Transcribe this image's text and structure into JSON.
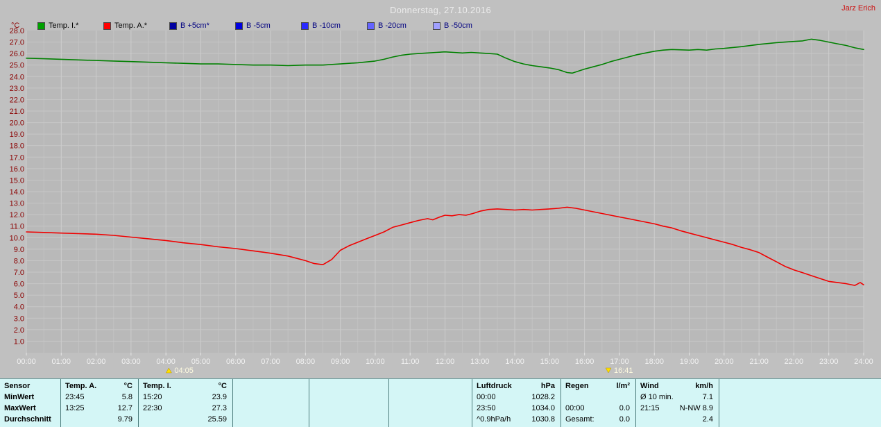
{
  "header": {
    "title": "Donnerstag, 27.10.2016",
    "user": "Jarz Erich"
  },
  "legend": {
    "axis_unit": "°C",
    "items": [
      {
        "label": "Temp. I.*",
        "color": "#00a000",
        "text_color": "#000000"
      },
      {
        "label": "Temp. A.*",
        "color": "#ff0000",
        "text_color": "#000000"
      },
      {
        "label": "B +5cm*",
        "color": "#0000a0",
        "text_color": "#000080"
      },
      {
        "label": "B -5cm",
        "color": "#0000e0",
        "text_color": "#000080"
      },
      {
        "label": "B -10cm",
        "color": "#2828ff",
        "text_color": "#000080"
      },
      {
        "label": "B -20cm",
        "color": "#6464ff",
        "text_color": "#000080"
      },
      {
        "label": "B -50cm",
        "color": "#a0a0ff",
        "text_color": "#000080"
      }
    ]
  },
  "chart_data": {
    "type": "line",
    "title": "Donnerstag, 27.10.2016",
    "ylabel": "°C",
    "ylim": [
      0,
      28
    ],
    "ytick_step": 1,
    "grid": true,
    "xtick_labels": [
      "00:00",
      "01:00",
      "02:00",
      "03:00",
      "04:00",
      "05:00",
      "06:00",
      "07:00",
      "08:00",
      "09:00",
      "10:00",
      "11:00",
      "12:00",
      "13:00",
      "14:00",
      "15:00",
      "16:00",
      "17:00",
      "18:00",
      "19:00",
      "20:00",
      "21:00",
      "22:00",
      "23:00",
      "24:00"
    ],
    "ytick_labels": [
      "1.0",
      "2.0",
      "3.0",
      "4.0",
      "5.0",
      "6.0",
      "7.0",
      "8.0",
      "9.0",
      "10.0",
      "11.0",
      "12.0",
      "13.0",
      "14.0",
      "15.0",
      "16.0",
      "17.0",
      "18.0",
      "19.0",
      "20.0",
      "21.0",
      "22.0",
      "23.0",
      "24.0",
      "25.0",
      "26.0",
      "27.0",
      "28.0"
    ],
    "sun_markers": [
      {
        "label": "04:05",
        "hour": 4.083,
        "direction": "up"
      },
      {
        "label": "16:41",
        "hour": 16.683,
        "direction": "down"
      }
    ],
    "series": [
      {
        "name": "Temp. I.*",
        "color": "#008000",
        "points": [
          [
            0,
            25.6
          ],
          [
            0.5,
            25.55
          ],
          [
            1,
            25.5
          ],
          [
            1.5,
            25.45
          ],
          [
            2,
            25.4
          ],
          [
            2.5,
            25.35
          ],
          [
            3,
            25.3
          ],
          [
            3.5,
            25.25
          ],
          [
            4,
            25.2
          ],
          [
            4.5,
            25.15
          ],
          [
            5,
            25.1
          ],
          [
            5.5,
            25.1
          ],
          [
            6,
            25.05
          ],
          [
            6.5,
            25.0
          ],
          [
            7,
            25.0
          ],
          [
            7.5,
            24.95
          ],
          [
            8,
            25.0
          ],
          [
            8.5,
            25.0
          ],
          [
            9,
            25.1
          ],
          [
            9.5,
            25.2
          ],
          [
            10,
            25.35
          ],
          [
            10.25,
            25.5
          ],
          [
            10.5,
            25.7
          ],
          [
            10.75,
            25.85
          ],
          [
            11,
            25.95
          ],
          [
            11.25,
            26.0
          ],
          [
            11.5,
            26.05
          ],
          [
            11.75,
            26.1
          ],
          [
            12,
            26.15
          ],
          [
            12.25,
            26.1
          ],
          [
            12.5,
            26.05
          ],
          [
            12.75,
            26.1
          ],
          [
            13,
            26.05
          ],
          [
            13.25,
            26.0
          ],
          [
            13.5,
            25.95
          ],
          [
            13.75,
            25.6
          ],
          [
            14,
            25.3
          ],
          [
            14.25,
            25.1
          ],
          [
            14.5,
            24.95
          ],
          [
            14.75,
            24.85
          ],
          [
            15,
            24.75
          ],
          [
            15.25,
            24.6
          ],
          [
            15.5,
            24.35
          ],
          [
            15.65,
            24.3
          ],
          [
            16,
            24.65
          ],
          [
            16.25,
            24.85
          ],
          [
            16.5,
            25.05
          ],
          [
            16.75,
            25.3
          ],
          [
            17,
            25.5
          ],
          [
            17.25,
            25.7
          ],
          [
            17.5,
            25.9
          ],
          [
            17.75,
            26.05
          ],
          [
            18,
            26.2
          ],
          [
            18.25,
            26.3
          ],
          [
            18.5,
            26.35
          ],
          [
            19,
            26.3
          ],
          [
            19.25,
            26.35
          ],
          [
            19.5,
            26.3
          ],
          [
            19.75,
            26.4
          ],
          [
            20,
            26.45
          ],
          [
            20.5,
            26.6
          ],
          [
            21,
            26.8
          ],
          [
            21.5,
            26.95
          ],
          [
            22,
            27.05
          ],
          [
            22.25,
            27.1
          ],
          [
            22.5,
            27.25
          ],
          [
            22.75,
            27.15
          ],
          [
            23,
            27.0
          ],
          [
            23.25,
            26.85
          ],
          [
            23.5,
            26.7
          ],
          [
            23.75,
            26.5
          ],
          [
            24,
            26.35
          ]
        ]
      },
      {
        "name": "Temp. A.*",
        "color": "#f00000",
        "points": [
          [
            0,
            10.5
          ],
          [
            0.5,
            10.45
          ],
          [
            1,
            10.4
          ],
          [
            1.5,
            10.35
          ],
          [
            2,
            10.3
          ],
          [
            2.5,
            10.2
          ],
          [
            3,
            10.05
          ],
          [
            3.5,
            9.9
          ],
          [
            4,
            9.75
          ],
          [
            4.5,
            9.55
          ],
          [
            5,
            9.4
          ],
          [
            5.5,
            9.2
          ],
          [
            6,
            9.05
          ],
          [
            6.5,
            8.85
          ],
          [
            7,
            8.65
          ],
          [
            7.5,
            8.4
          ],
          [
            8,
            8.0
          ],
          [
            8.25,
            7.75
          ],
          [
            8.5,
            7.65
          ],
          [
            8.75,
            8.1
          ],
          [
            9,
            8.9
          ],
          [
            9.25,
            9.3
          ],
          [
            9.5,
            9.6
          ],
          [
            9.75,
            9.9
          ],
          [
            10,
            10.2
          ],
          [
            10.25,
            10.5
          ],
          [
            10.5,
            10.9
          ],
          [
            10.75,
            11.1
          ],
          [
            11,
            11.3
          ],
          [
            11.25,
            11.5
          ],
          [
            11.5,
            11.65
          ],
          [
            11.65,
            11.55
          ],
          [
            11.85,
            11.8
          ],
          [
            12,
            11.95
          ],
          [
            12.2,
            11.9
          ],
          [
            12.4,
            12.0
          ],
          [
            12.6,
            11.95
          ],
          [
            12.8,
            12.1
          ],
          [
            13,
            12.3
          ],
          [
            13.25,
            12.45
          ],
          [
            13.5,
            12.5
          ],
          [
            13.75,
            12.45
          ],
          [
            14,
            12.4
          ],
          [
            14.25,
            12.45
          ],
          [
            14.5,
            12.4
          ],
          [
            14.75,
            12.45
          ],
          [
            15,
            12.5
          ],
          [
            15.25,
            12.55
          ],
          [
            15.5,
            12.65
          ],
          [
            15.75,
            12.55
          ],
          [
            16,
            12.4
          ],
          [
            16.25,
            12.25
          ],
          [
            16.5,
            12.1
          ],
          [
            16.75,
            11.95
          ],
          [
            17,
            11.8
          ],
          [
            17.25,
            11.65
          ],
          [
            17.5,
            11.5
          ],
          [
            17.75,
            11.35
          ],
          [
            18,
            11.2
          ],
          [
            18.25,
            11.0
          ],
          [
            18.5,
            10.85
          ],
          [
            18.75,
            10.6
          ],
          [
            19,
            10.4
          ],
          [
            19.25,
            10.2
          ],
          [
            19.5,
            10.0
          ],
          [
            19.75,
            9.8
          ],
          [
            20,
            9.6
          ],
          [
            20.25,
            9.4
          ],
          [
            20.5,
            9.15
          ],
          [
            20.75,
            8.95
          ],
          [
            21,
            8.7
          ],
          [
            21.25,
            8.3
          ],
          [
            21.5,
            7.9
          ],
          [
            21.75,
            7.5
          ],
          [
            22,
            7.2
          ],
          [
            22.25,
            6.95
          ],
          [
            22.5,
            6.7
          ],
          [
            22.75,
            6.45
          ],
          [
            23,
            6.2
          ],
          [
            23.25,
            6.1
          ],
          [
            23.5,
            6.0
          ],
          [
            23.75,
            5.85
          ],
          [
            23.9,
            6.1
          ],
          [
            24,
            5.9
          ]
        ]
      }
    ]
  },
  "table": {
    "row_labels": [
      "Sensor",
      "MinWert",
      "MaxWert",
      "Durchschnitt"
    ],
    "columns": [
      {
        "header": "Temp. A.",
        "unit": "°C",
        "rows": [
          [
            "23:45",
            "5.8"
          ],
          [
            "13:25",
            "12.7"
          ],
          [
            "",
            "9.79"
          ]
        ]
      },
      {
        "header": "Temp. I.",
        "unit": "°C",
        "rows": [
          [
            "15:20",
            "23.9"
          ],
          [
            "22:30",
            "27.3"
          ],
          [
            "",
            "25.59"
          ]
        ]
      },
      {
        "header": "",
        "unit": "",
        "rows": [
          [
            "",
            ""
          ],
          [
            "",
            ""
          ],
          [
            "",
            ""
          ]
        ]
      },
      {
        "header": "",
        "unit": "",
        "rows": [
          [
            "",
            ""
          ],
          [
            "",
            ""
          ],
          [
            "",
            ""
          ]
        ]
      },
      {
        "header": "",
        "unit": "",
        "rows": [
          [
            "",
            ""
          ],
          [
            "",
            ""
          ],
          [
            "",
            ""
          ]
        ]
      },
      {
        "header": "Luftdruck",
        "unit": "hPa",
        "rows": [
          [
            "00:00",
            "1028.2"
          ],
          [
            "23:50",
            "1034.0"
          ],
          [
            "^0.9hPa/h",
            "1030.8"
          ]
        ]
      },
      {
        "header": "Regen",
        "unit": "l/m²",
        "rows": [
          [
            "",
            ""
          ],
          [
            "00:00",
            "0.0"
          ],
          [
            "Gesamt:",
            "0.0"
          ]
        ]
      },
      {
        "header": "Wind",
        "unit": "km/h",
        "rows": [
          [
            "Ø 10 min.",
            "7.1"
          ],
          [
            "21:15",
            "N-NW 8.9"
          ],
          [
            "",
            "2.4"
          ]
        ]
      }
    ]
  }
}
